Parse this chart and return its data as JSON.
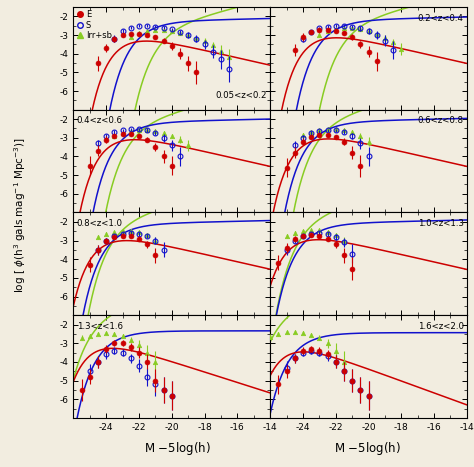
{
  "panels_order": [
    [
      "0.05<z<0.2",
      "0.2<z<0.4"
    ],
    [
      "0.4<z<0.6",
      "0.6<z<0.8"
    ],
    [
      "0.8<z<1.0",
      "1.0<z<1.3"
    ],
    [
      "1.3<z<1.6",
      "1.6<z<2.0"
    ]
  ],
  "label_pos": {
    "0.05<z<0.2": "bottom_right",
    "0.2<z<0.4": "top_right",
    "0.4<z<0.6": "top_left",
    "0.6<z<0.8": "top_right",
    "0.8<z<1.0": "top_left",
    "1.0<z<1.3": "top_right",
    "1.3<z<1.6": "top_left",
    "1.6<z<2.0": "top_right"
  },
  "colors": {
    "E": "#cc0000",
    "S": "#1111cc",
    "Irr": "#88cc22"
  },
  "bg_color": "#f2ede0",
  "xlim": [
    -26,
    -14
  ],
  "ylim": [
    -6.8,
    -1.5
  ],
  "yticks": [
    -6,
    -5,
    -4,
    -3,
    -2
  ],
  "xticks": [
    -24,
    -22,
    -20,
    -18,
    -16,
    -14
  ],
  "schechter": {
    "0.05<z<0.2": {
      "E": [
        -22.3,
        -0.5,
        0.0012
      ],
      "S": [
        -21.2,
        -1.05,
        0.006
      ],
      "Irr": [
        -19.8,
        -1.55,
        0.005
      ]
    },
    "0.2<z<0.4": {
      "E": [
        -22.7,
        -0.5,
        0.0018
      ],
      "S": [
        -21.8,
        -1.05,
        0.007
      ],
      "Irr": [
        -20.5,
        -1.55,
        0.008
      ]
    },
    "0.4<z<0.6": {
      "E": [
        -23.0,
        -0.5,
        0.002
      ],
      "S": [
        -22.2,
        -1.05,
        0.0075
      ],
      "Irr": [
        -21.5,
        -1.55,
        0.012
      ]
    },
    "0.6<z<0.8": {
      "E": [
        -23.2,
        -0.5,
        0.0022
      ],
      "S": [
        -22.5,
        -1.05,
        0.008
      ],
      "Irr": [
        -22.0,
        -1.55,
        0.018
      ]
    },
    "0.8<z<1.0": {
      "E": [
        -23.5,
        -0.5,
        0.0025
      ],
      "S": [
        -22.8,
        -1.05,
        0.0085
      ],
      "Irr": [
        -22.5,
        -1.55,
        0.025
      ]
    },
    "1.0<z<1.3": {
      "E": [
        -23.8,
        -0.5,
        0.0028
      ],
      "S": [
        -23.0,
        -1.05,
        0.009
      ],
      "Irr": [
        -23.0,
        -1.55,
        0.04
      ]
    },
    "1.3<z<1.6": {
      "E": [
        -24.0,
        -0.3,
        0.0015
      ],
      "S": [
        -23.2,
        -1.0,
        0.005
      ],
      "Irr": [
        -23.8,
        -1.55,
        0.08
      ]
    },
    "1.6<z<2.0": {
      "E": [
        -24.2,
        -0.2,
        0.001
      ],
      "S": [
        -23.5,
        -1.0,
        0.004
      ],
      "Irr": [
        -24.5,
        -1.55,
        0.15
      ]
    }
  },
  "data_E": {
    "0.05<z<0.2": {
      "M": [
        -24.5,
        -24.0,
        -23.5,
        -23.0,
        -22.5,
        -22.0,
        -21.5,
        -21.0,
        -20.5,
        -20.0,
        -19.5,
        -19.0,
        -18.5
      ],
      "phi": [
        -4.5,
        -3.7,
        -3.2,
        -3.0,
        -2.95,
        -2.95,
        -3.0,
        -3.1,
        -3.3,
        -3.6,
        -4.0,
        -4.5,
        -5.0
      ],
      "err": [
        0.4,
        0.2,
        0.15,
        0.1,
        0.1,
        0.1,
        0.1,
        0.1,
        0.15,
        0.2,
        0.3,
        0.4,
        0.6
      ]
    },
    "0.2<z<0.4": {
      "M": [
        -24.5,
        -24.0,
        -23.5,
        -23.0,
        -22.5,
        -22.0,
        -21.5,
        -21.0,
        -20.5,
        -20.0,
        -19.5
      ],
      "phi": [
        -3.8,
        -3.1,
        -2.85,
        -2.75,
        -2.75,
        -2.8,
        -2.9,
        -3.1,
        -3.5,
        -3.9,
        -4.4
      ],
      "err": [
        0.3,
        0.2,
        0.12,
        0.1,
        0.1,
        0.1,
        0.12,
        0.15,
        0.2,
        0.3,
        0.5
      ]
    },
    "0.4<z<0.6": {
      "M": [
        -25.0,
        -24.5,
        -24.0,
        -23.5,
        -23.0,
        -22.5,
        -22.0,
        -21.5,
        -21.0,
        -20.5,
        -20.0
      ],
      "phi": [
        -4.5,
        -3.7,
        -3.1,
        -2.9,
        -2.8,
        -2.8,
        -2.9,
        -3.1,
        -3.5,
        -4.0,
        -4.5
      ],
      "err": [
        0.5,
        0.3,
        0.2,
        0.12,
        0.1,
        0.1,
        0.12,
        0.15,
        0.2,
        0.35,
        0.5
      ]
    },
    "0.6<z<0.8": {
      "M": [
        -25.0,
        -24.5,
        -24.0,
        -23.5,
        -23.0,
        -22.5,
        -22.0,
        -21.5,
        -21.0,
        -20.5
      ],
      "phi": [
        -4.6,
        -3.8,
        -3.2,
        -2.95,
        -2.85,
        -2.85,
        -2.95,
        -3.2,
        -3.8,
        -4.5
      ],
      "err": [
        0.5,
        0.3,
        0.2,
        0.12,
        0.1,
        0.1,
        0.12,
        0.2,
        0.35,
        0.6
      ]
    },
    "0.8<z<1.0": {
      "M": [
        -25.0,
        -24.5,
        -24.0,
        -23.5,
        -23.0,
        -22.5,
        -22.0,
        -21.5,
        -21.0
      ],
      "phi": [
        -4.3,
        -3.5,
        -3.0,
        -2.8,
        -2.75,
        -2.75,
        -2.9,
        -3.2,
        -3.8
      ],
      "err": [
        0.4,
        0.25,
        0.15,
        0.1,
        0.1,
        0.1,
        0.12,
        0.2,
        0.4
      ]
    },
    "1.0<z<1.3": {
      "M": [
        -25.5,
        -25.0,
        -24.5,
        -24.0,
        -23.5,
        -23.0,
        -22.5,
        -22.0,
        -21.5,
        -21.0
      ],
      "phi": [
        -4.2,
        -3.4,
        -2.9,
        -2.75,
        -2.7,
        -2.75,
        -2.9,
        -3.2,
        -3.8,
        -4.5
      ],
      "err": [
        0.4,
        0.25,
        0.15,
        0.1,
        0.1,
        0.1,
        0.12,
        0.2,
        0.4,
        0.6
      ]
    },
    "1.3<z<1.6": {
      "M": [
        -25.5,
        -25.0,
        -24.5,
        -24.0,
        -23.5,
        -23.0,
        -22.5,
        -22.0,
        -21.5,
        -21.0,
        -20.5,
        -20.0
      ],
      "phi": [
        -5.5,
        -4.8,
        -4.0,
        -3.3,
        -3.0,
        -3.0,
        -3.2,
        -3.5,
        -4.0,
        -5.0,
        -5.5,
        -5.8
      ],
      "err": [
        0.6,
        0.4,
        0.3,
        0.2,
        0.15,
        0.15,
        0.2,
        0.3,
        0.4,
        0.6,
        0.7,
        0.8
      ]
    },
    "1.6<z<2.0": {
      "M": [
        -25.5,
        -25.0,
        -24.5,
        -24.0,
        -23.5,
        -23.0,
        -22.5,
        -22.0,
        -21.5,
        -21.0,
        -20.5,
        -20.0
      ],
      "phi": [
        -5.2,
        -4.5,
        -3.8,
        -3.4,
        -3.3,
        -3.4,
        -3.6,
        -4.0,
        -4.5,
        -5.0,
        -5.5,
        -5.8
      ],
      "err": [
        0.5,
        0.35,
        0.25,
        0.18,
        0.15,
        0.18,
        0.25,
        0.35,
        0.5,
        0.6,
        0.7,
        0.8
      ]
    }
  },
  "data_S": {
    "0.05<z<0.2": {
      "M": [
        -23.5,
        -23.0,
        -22.5,
        -22.0,
        -21.5,
        -21.0,
        -20.5,
        -20.0,
        -19.5,
        -19.0,
        -18.5,
        -18.0,
        -17.5,
        -17.0,
        -16.5
      ],
      "phi": [
        -3.2,
        -2.8,
        -2.6,
        -2.5,
        -2.5,
        -2.55,
        -2.6,
        -2.7,
        -2.85,
        -3.0,
        -3.2,
        -3.5,
        -3.9,
        -4.3,
        -4.8
      ],
      "err": [
        0.2,
        0.12,
        0.1,
        0.08,
        0.08,
        0.08,
        0.1,
        0.1,
        0.12,
        0.15,
        0.2,
        0.25,
        0.35,
        0.5,
        0.7
      ]
    },
    "0.2<z<0.4": {
      "M": [
        -24.0,
        -23.5,
        -23.0,
        -22.5,
        -22.0,
        -21.5,
        -21.0,
        -20.5,
        -20.0,
        -19.5,
        -19.0,
        -18.5
      ],
      "phi": [
        -3.2,
        -2.85,
        -2.65,
        -2.55,
        -2.5,
        -2.5,
        -2.55,
        -2.65,
        -2.8,
        -3.0,
        -3.3,
        -3.8
      ],
      "err": [
        0.2,
        0.12,
        0.1,
        0.08,
        0.08,
        0.08,
        0.1,
        0.12,
        0.15,
        0.2,
        0.3,
        0.5
      ]
    },
    "0.4<z<0.6": {
      "M": [
        -24.5,
        -24.0,
        -23.5,
        -23.0,
        -22.5,
        -22.0,
        -21.5,
        -21.0,
        -20.5,
        -20.0,
        -19.5
      ],
      "phi": [
        -3.3,
        -2.9,
        -2.7,
        -2.6,
        -2.55,
        -2.55,
        -2.6,
        -2.75,
        -3.0,
        -3.4,
        -4.0
      ],
      "err": [
        0.2,
        0.12,
        0.1,
        0.08,
        0.08,
        0.08,
        0.1,
        0.12,
        0.2,
        0.3,
        0.5
      ]
    },
    "0.6<z<0.8": {
      "M": [
        -24.5,
        -24.0,
        -23.5,
        -23.0,
        -22.5,
        -22.0,
        -21.5,
        -21.0,
        -20.5,
        -20.0
      ],
      "phi": [
        -3.4,
        -3.0,
        -2.75,
        -2.65,
        -2.6,
        -2.6,
        -2.7,
        -2.9,
        -3.3,
        -4.0
      ],
      "err": [
        0.25,
        0.15,
        0.1,
        0.09,
        0.09,
        0.09,
        0.12,
        0.18,
        0.3,
        0.5
      ]
    },
    "0.8<z<1.0": {
      "M": [
        -24.5,
        -24.0,
        -23.5,
        -23.0,
        -22.5,
        -22.0,
        -21.5,
        -21.0,
        -20.5
      ],
      "phi": [
        -3.5,
        -3.0,
        -2.75,
        -2.65,
        -2.6,
        -2.65,
        -2.75,
        -3.0,
        -3.5
      ],
      "err": [
        0.25,
        0.15,
        0.1,
        0.09,
        0.09,
        0.1,
        0.12,
        0.2,
        0.4
      ]
    },
    "1.0<z<1.3": {
      "M": [
        -25.0,
        -24.5,
        -24.0,
        -23.5,
        -23.0,
        -22.5,
        -22.0,
        -21.5,
        -21.0
      ],
      "phi": [
        -3.5,
        -3.0,
        -2.75,
        -2.65,
        -2.6,
        -2.65,
        -2.8,
        -3.1,
        -3.7
      ],
      "err": [
        0.25,
        0.15,
        0.1,
        0.09,
        0.09,
        0.1,
        0.15,
        0.25,
        0.5
      ]
    },
    "1.3<z<1.6": {
      "M": [
        -25.0,
        -24.5,
        -24.0,
        -23.5,
        -23.0,
        -22.5,
        -22.0,
        -21.5,
        -21.0,
        -20.5,
        -20.0
      ],
      "phi": [
        -4.5,
        -4.0,
        -3.6,
        -3.4,
        -3.5,
        -3.8,
        -4.2,
        -4.8,
        -5.2,
        -5.5,
        -5.8
      ],
      "err": [
        0.4,
        0.3,
        0.25,
        0.2,
        0.2,
        0.25,
        0.35,
        0.5,
        0.6,
        0.7,
        0.8
      ]
    },
    "1.6<z<2.0": {
      "M": [
        -25.0,
        -24.5,
        -24.0,
        -23.5,
        -23.0,
        -22.5,
        -22.0,
        -21.5,
        -21.0,
        -20.5,
        -20.0
      ],
      "phi": [
        -4.3,
        -3.8,
        -3.5,
        -3.4,
        -3.5,
        -3.7,
        -4.0,
        -4.5,
        -5.0,
        -5.5,
        -5.8
      ],
      "err": [
        0.35,
        0.25,
        0.2,
        0.18,
        0.2,
        0.25,
        0.35,
        0.5,
        0.6,
        0.7,
        0.8
      ]
    }
  },
  "data_Irr": {
    "0.05<z<0.2": {
      "M": [
        -22.5,
        -22.0,
        -21.5,
        -21.0,
        -20.5,
        -20.0,
        -19.5,
        -19.0,
        -18.5,
        -18.0,
        -17.5,
        -17.0,
        -16.5
      ],
      "phi": [
        -3.1,
        -2.9,
        -2.8,
        -2.75,
        -2.75,
        -2.8,
        -2.9,
        -3.0,
        -3.15,
        -3.3,
        -3.55,
        -3.85,
        -4.2
      ],
      "err": [
        0.1,
        0.08,
        0.07,
        0.07,
        0.07,
        0.08,
        0.09,
        0.1,
        0.12,
        0.15,
        0.2,
        0.3,
        0.45
      ]
    },
    "0.2<z<0.4": {
      "M": [
        -23.0,
        -22.5,
        -22.0,
        -21.5,
        -21.0,
        -20.5,
        -20.0,
        -19.5,
        -19.0,
        -18.5,
        -18.0
      ],
      "phi": [
        -3.0,
        -2.8,
        -2.7,
        -2.65,
        -2.65,
        -2.7,
        -2.8,
        -2.95,
        -3.15,
        -3.4,
        -3.75
      ],
      "err": [
        0.12,
        0.09,
        0.08,
        0.07,
        0.07,
        0.08,
        0.1,
        0.12,
        0.15,
        0.2,
        0.3
      ]
    },
    "0.4<z<0.6": {
      "M": [
        -23.5,
        -23.0,
        -22.5,
        -22.0,
        -21.5,
        -21.0,
        -20.5,
        -20.0,
        -19.5,
        -19.0
      ],
      "phi": [
        -2.9,
        -2.75,
        -2.65,
        -2.6,
        -2.6,
        -2.65,
        -2.75,
        -2.9,
        -3.1,
        -3.4
      ],
      "err": [
        0.12,
        0.09,
        0.08,
        0.07,
        0.07,
        0.08,
        0.1,
        0.12,
        0.18,
        0.3
      ]
    },
    "0.6<z<0.8": {
      "M": [
        -24.0,
        -23.5,
        -23.0,
        -22.5,
        -22.0,
        -21.5,
        -21.0,
        -20.5,
        -20.0
      ],
      "phi": [
        -2.85,
        -2.7,
        -2.6,
        -2.55,
        -2.55,
        -2.6,
        -2.7,
        -2.9,
        -3.2
      ],
      "err": [
        0.12,
        0.09,
        0.08,
        0.07,
        0.07,
        0.08,
        0.1,
        0.15,
        0.25
      ]
    },
    "0.8<z<1.0": {
      "M": [
        -24.5,
        -24.0,
        -23.5,
        -23.0,
        -22.5,
        -22.0,
        -21.5,
        -21.0
      ],
      "phi": [
        -2.8,
        -2.65,
        -2.55,
        -2.5,
        -2.5,
        -2.55,
        -2.7,
        -3.0
      ],
      "err": [
        0.12,
        0.09,
        0.08,
        0.07,
        0.07,
        0.08,
        0.12,
        0.2
      ]
    },
    "1.0<z<1.3": {
      "M": [
        -25.0,
        -24.5,
        -24.0,
        -23.5,
        -23.0,
        -22.5,
        -22.0,
        -21.5
      ],
      "phi": [
        -2.75,
        -2.6,
        -2.5,
        -2.45,
        -2.45,
        -2.55,
        -2.7,
        -3.0
      ],
      "err": [
        0.12,
        0.09,
        0.08,
        0.07,
        0.07,
        0.09,
        0.12,
        0.2
      ]
    },
    "1.3<z<1.6": {
      "M": [
        -25.5,
        -25.0,
        -24.5,
        -24.0,
        -23.5,
        -23.0,
        -22.5,
        -22.0,
        -21.5,
        -21.0
      ],
      "phi": [
        -2.7,
        -2.6,
        -2.5,
        -2.45,
        -2.5,
        -2.6,
        -2.8,
        -3.1,
        -3.5,
        -4.0
      ],
      "err": [
        0.12,
        0.09,
        0.08,
        0.07,
        0.08,
        0.1,
        0.15,
        0.25,
        0.4,
        0.6
      ]
    },
    "1.6<z<2.0": {
      "M": [
        -26.0,
        -25.5,
        -25.0,
        -24.5,
        -24.0,
        -23.5,
        -23.0,
        -22.5,
        -22.0,
        -21.5
      ],
      "phi": [
        -2.65,
        -2.5,
        -2.4,
        -2.4,
        -2.45,
        -2.55,
        -2.7,
        -3.0,
        -3.4,
        -4.0
      ],
      "err": [
        0.12,
        0.09,
        0.08,
        0.07,
        0.08,
        0.1,
        0.15,
        0.25,
        0.4,
        0.6
      ]
    }
  }
}
